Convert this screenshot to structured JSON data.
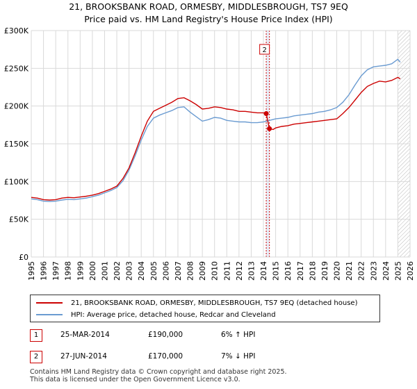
{
  "header": {
    "title": "21, BROOKSBANK ROAD, ORMESBY, MIDDLESBROUGH, TS7 9EQ",
    "subtitle": "Price paid vs. HM Land Registry's House Price Index (HPI)"
  },
  "colors": {
    "property": "#cc0000",
    "hpi": "#6a9bd1",
    "grid": "#d9d9d9",
    "marker_band": "#dde6f4"
  },
  "chart_data": {
    "type": "line",
    "title": "21, BROOKSBANK ROAD, ORMESBY, MIDDLESBROUGH, TS7 9EQ",
    "xlim": [
      1995,
      2026
    ],
    "ylim": [
      0,
      300000
    ],
    "y_ticks": [
      0,
      50000,
      100000,
      150000,
      200000,
      250000,
      300000
    ],
    "y_tick_labels": [
      "£0",
      "£50K",
      "£100K",
      "£150K",
      "£200K",
      "£250K",
      "£300K"
    ],
    "x_ticks": [
      1995,
      1996,
      1997,
      1998,
      1999,
      2000,
      2001,
      2002,
      2003,
      2004,
      2005,
      2006,
      2007,
      2008,
      2009,
      2010,
      2011,
      2012,
      2013,
      2014,
      2015,
      2016,
      2017,
      2018,
      2019,
      2020,
      2021,
      2022,
      2023,
      2024,
      2025,
      2026
    ],
    "x_tick_labels": [
      "1995",
      "1996",
      "1997",
      "1998",
      "1999",
      "2000",
      "2001",
      "2002",
      "2003",
      "2004",
      "2005",
      "2006",
      "2007",
      "2008",
      "2009",
      "2010",
      "2011",
      "2012",
      "2013",
      "2014",
      "2015",
      "2016",
      "2017",
      "2018",
      "2019",
      "2020",
      "2021",
      "2022",
      "2023",
      "2024",
      "2025",
      "2026"
    ],
    "series": [
      {
        "name": "21, BROOKSBANK ROAD, ORMESBY, MIDDLESBROUGH, TS7 9EQ (detached house)",
        "x": [
          1995,
          1995.5,
          1996,
          1996.5,
          1997,
          1997.5,
          1998,
          1998.5,
          1999,
          1999.5,
          2000,
          2000.5,
          2001,
          2001.5,
          2002,
          2002.5,
          2003,
          2003.5,
          2004,
          2004.5,
          2005,
          2005.5,
          2006,
          2006.5,
          2007,
          2007.5,
          2008,
          2008.5,
          2009,
          2009.5,
          2010,
          2010.5,
          2011,
          2011.5,
          2012,
          2012.5,
          2013,
          2013.5,
          2014,
          2014.23,
          2014.49,
          2014.8,
          2015,
          2015.5,
          2016,
          2016.5,
          2017,
          2017.5,
          2018,
          2018.5,
          2019,
          2019.5,
          2020,
          2020.5,
          2021,
          2021.5,
          2022,
          2022.5,
          2023,
          2023.5,
          2024,
          2024.5,
          2025,
          2025.2
        ],
        "values": [
          79000,
          78000,
          76000,
          75500,
          76000,
          78000,
          79000,
          78500,
          79500,
          80500,
          82000,
          84000,
          87000,
          90000,
          94000,
          104000,
          118000,
          138000,
          160000,
          180000,
          193000,
          197000,
          201000,
          205000,
          210000,
          211000,
          207000,
          202000,
          196000,
          197000,
          199000,
          198000,
          196000,
          195000,
          193000,
          193000,
          192000,
          191000,
          191000,
          190000,
          170000,
          169000,
          171000,
          173000,
          174000,
          176000,
          177000,
          178000,
          179000,
          180000,
          181000,
          182000,
          183000,
          190000,
          198000,
          208000,
          218000,
          226000,
          230000,
          233000,
          232000,
          234000,
          238000,
          236000
        ]
      },
      {
        "name": "HPI: Average price, detached house, Redcar and Cleveland",
        "x": [
          1995,
          1995.5,
          1996,
          1996.5,
          1997,
          1997.5,
          1998,
          1998.5,
          1999,
          1999.5,
          2000,
          2000.5,
          2001,
          2001.5,
          2002,
          2002.5,
          2003,
          2003.5,
          2004,
          2004.5,
          2005,
          2005.5,
          2006,
          2006.5,
          2007,
          2007.5,
          2008,
          2008.5,
          2009,
          2009.5,
          2010,
          2010.5,
          2011,
          2011.5,
          2012,
          2012.5,
          2013,
          2013.5,
          2014,
          2014.5,
          2015,
          2015.5,
          2016,
          2016.5,
          2017,
          2017.5,
          2018,
          2018.5,
          2019,
          2019.5,
          2020,
          2020.5,
          2021,
          2021.5,
          2022,
          2022.5,
          2023,
          2023.5,
          2024,
          2024.5,
          2025,
          2025.2
        ],
        "values": [
          77000,
          76000,
          74000,
          73500,
          74000,
          75500,
          76500,
          76000,
          77000,
          78000,
          80000,
          82000,
          85000,
          88000,
          92000,
          101000,
          115000,
          134000,
          155000,
          173000,
          184000,
          188000,
          191000,
          194000,
          198000,
          199000,
          192000,
          186000,
          180000,
          182000,
          185000,
          184000,
          181000,
          180000,
          179000,
          179000,
          178000,
          178000,
          179000,
          181000,
          183000,
          184000,
          185000,
          187000,
          188000,
          189000,
          190000,
          192000,
          193000,
          195000,
          198000,
          205000,
          215000,
          228000,
          240000,
          248000,
          252000,
          253000,
          254000,
          256000,
          262000,
          258000
        ]
      }
    ],
    "sales": [
      {
        "label": "1",
        "x": 2014.23,
        "value": 190000
      },
      {
        "label": "2",
        "x": 2014.49,
        "value": 170000
      }
    ],
    "future_start": 2025.0
  },
  "legend": {
    "property": "21, BROOKSBANK ROAD, ORMESBY, MIDDLESBROUGH, TS7 9EQ (detached house)",
    "hpi": "HPI: Average price, detached house, Redcar and Cleveland"
  },
  "transactions": [
    {
      "num": "1",
      "date": "25-MAR-2014",
      "price": "£190,000",
      "pct": "6% ↑ HPI"
    },
    {
      "num": "2",
      "date": "27-JUN-2014",
      "price": "£170,000",
      "pct": "7% ↓ HPI"
    }
  ],
  "footer": {
    "line1": "Contains HM Land Registry data © Crown copyright and database right 2025.",
    "line2": "This data is licensed under the Open Government Licence v3.0."
  }
}
